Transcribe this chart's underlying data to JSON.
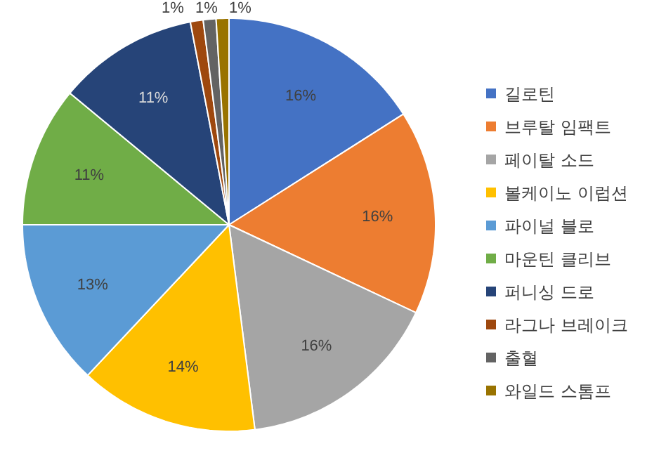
{
  "chart_data": {
    "type": "pie",
    "categories": [
      "길로틴",
      "브루탈 임팩트",
      "페이탈 소드",
      "볼케이노 이럽션",
      "파이널 블로",
      "마운틴 클리브",
      "퍼니싱 드로",
      "라그나 브레이크",
      "출혈",
      "와일드 스톰프"
    ],
    "values": [
      16,
      16,
      16,
      14,
      13,
      11,
      11,
      1,
      1,
      1
    ],
    "colors": [
      "#4472c4",
      "#ed7d31",
      "#a5a5a5",
      "#ffc000",
      "#5b9bd5",
      "#70ad47",
      "#264478",
      "#9e480e",
      "#636363",
      "#997300"
    ],
    "value_labels": [
      "16%",
      "16%",
      "16%",
      "14%",
      "13%",
      "11%",
      "11%",
      "1%",
      "1%",
      "1%"
    ],
    "legend": "right"
  }
}
